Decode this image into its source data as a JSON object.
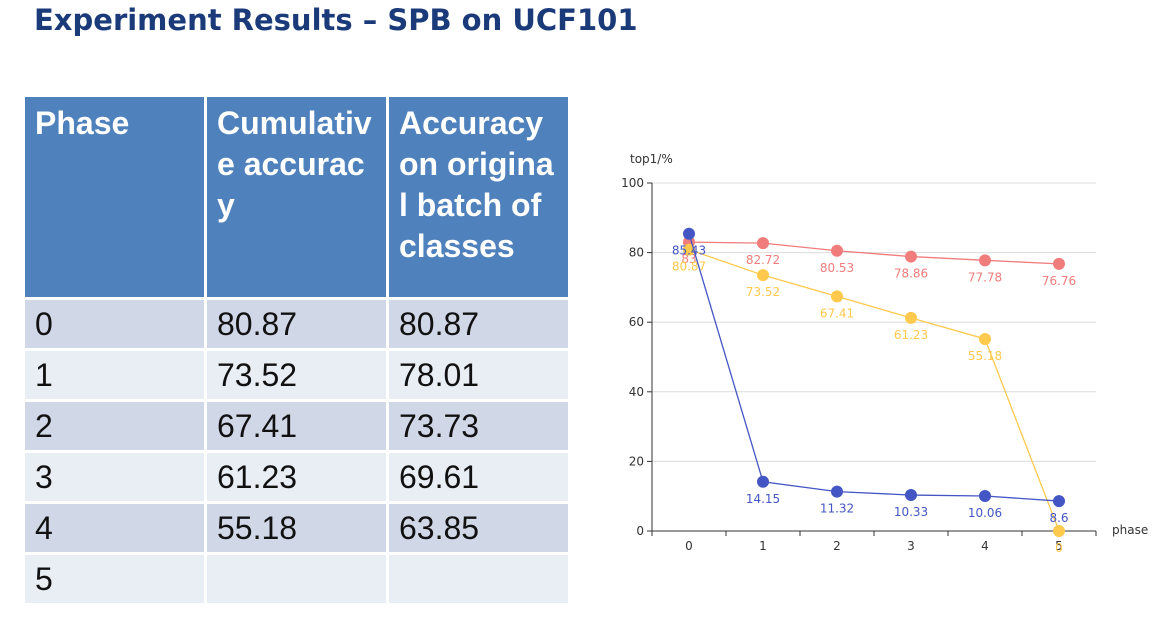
{
  "title": "Experiment Results – SPB on UCF101",
  "table": {
    "headers": [
      "Phase",
      "Cumulative accuracy",
      "Accuracy on original batch of classes"
    ],
    "rows": [
      [
        "0",
        "80.87",
        "80.87"
      ],
      [
        "1",
        "73.52",
        "78.01"
      ],
      [
        "2",
        "67.41",
        "73.73"
      ],
      [
        "3",
        "61.23",
        "69.61"
      ],
      [
        "4",
        "55.18",
        "63.85"
      ],
      [
        "5",
        "",
        ""
      ]
    ]
  },
  "chart_data": {
    "type": "line",
    "ylabel": "top1/%",
    "xlabel": "phase",
    "categories": [
      "0",
      "1",
      "2",
      "3",
      "4",
      "5"
    ],
    "yticks": [
      "0",
      "20",
      "40",
      "60",
      "80",
      "100"
    ],
    "ylim": [
      0,
      100
    ],
    "grid": "horizontal",
    "series": [
      {
        "color": "#f07c7c",
        "values": [
          83,
          82.72,
          80.53,
          78.86,
          77.78,
          76.76
        ],
        "labels": [
          "83",
          "82.72",
          "80.53",
          "78.86",
          "77.78",
          "76.76"
        ]
      },
      {
        "color": "#ffc94d",
        "values": [
          80.87,
          73.52,
          67.41,
          61.23,
          55.18,
          0
        ],
        "labels": [
          "80.87",
          "73.52",
          "67.41",
          "61.23",
          "55.18",
          "0"
        ]
      },
      {
        "color": "#4456c4",
        "values": [
          85.43,
          14.15,
          11.32,
          10.33,
          10.06,
          8.6
        ],
        "labels": [
          "85.43",
          "14.15",
          "11.32",
          "10.33",
          "10.06",
          "8.6"
        ]
      }
    ]
  }
}
